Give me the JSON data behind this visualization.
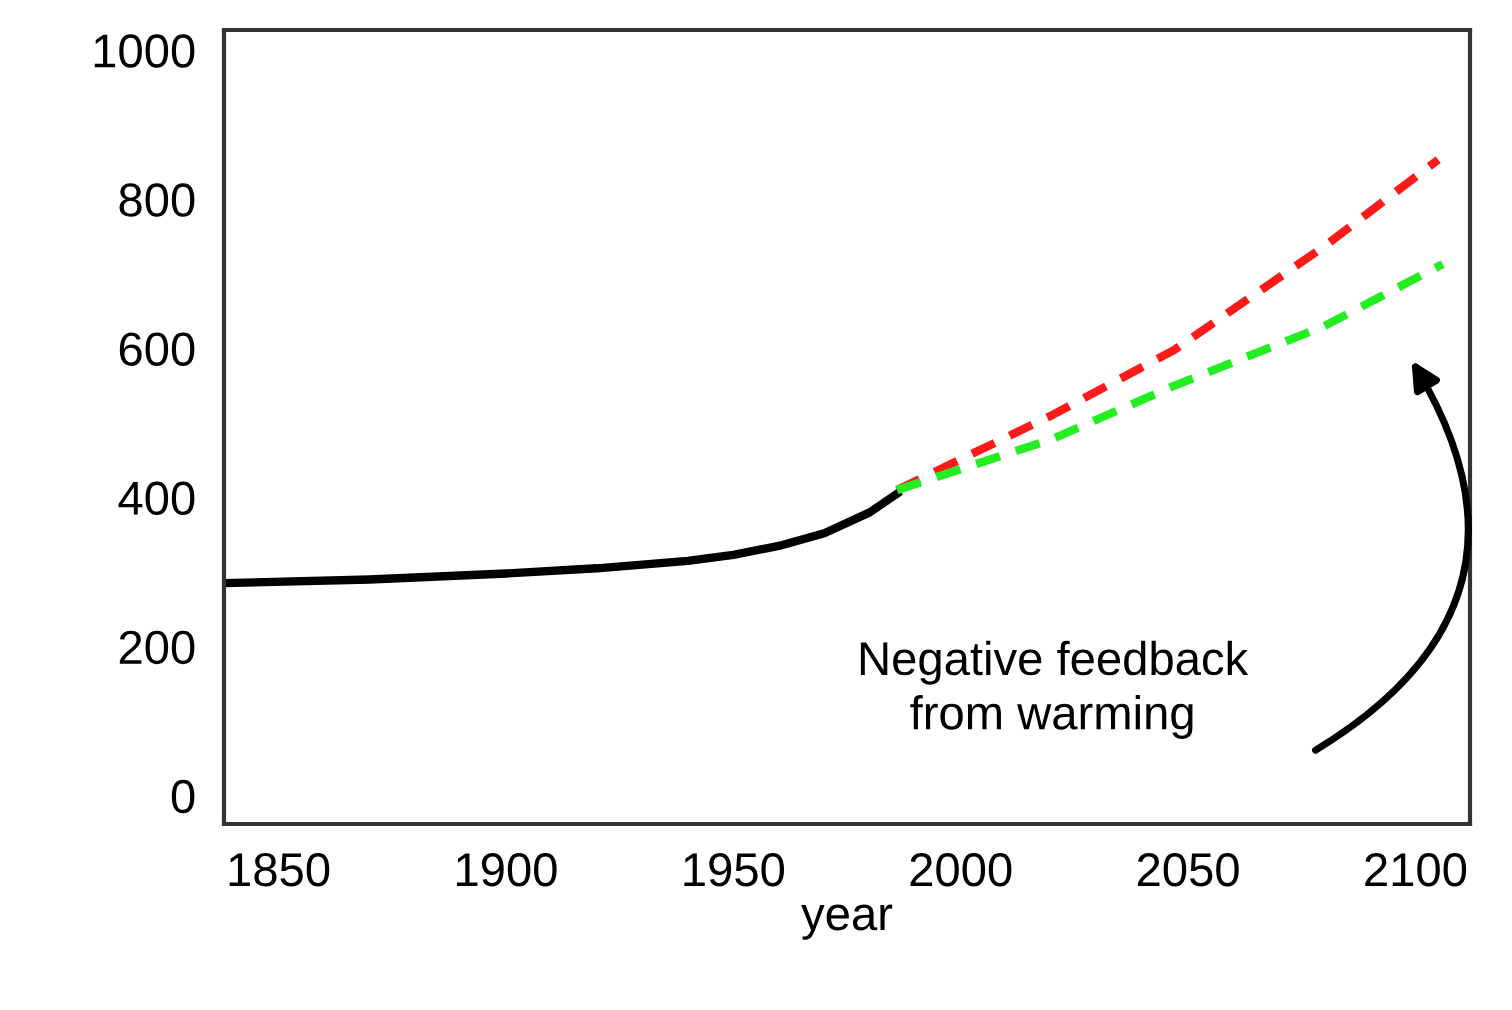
{
  "chart_data": {
    "type": "line",
    "xlabel": "year",
    "xlim": [
      1838,
      2112
    ],
    "xticks": [
      1850,
      1900,
      1950,
      2000,
      2050,
      2100
    ],
    "ylim": [
      -38,
      1027
    ],
    "yticks": [
      0,
      200,
      400,
      600,
      800,
      1000
    ],
    "grid": false,
    "series": [
      {
        "color": "#000000",
        "line_style": "solid",
        "x": [
          1838,
          1870,
          1900,
          1920,
          1940,
          1950,
          1960,
          1970,
          1980,
          1986
        ],
        "values": [
          285,
          290,
          298,
          305,
          315,
          323,
          335,
          352,
          380,
          405
        ]
      },
      {
        "color": "#ff1a1a",
        "line_style": "dashed",
        "x": [
          1986,
          2020,
          2047,
          2080,
          2105
        ],
        "values": [
          410,
          510,
          598,
          737,
          853
        ]
      },
      {
        "color": "#22ee22",
        "line_style": "dashed",
        "x": [
          1986,
          2020,
          2047,
          2080,
          2106
        ],
        "values": [
          410,
          478,
          550,
          630,
          713
        ]
      }
    ],
    "annotations": [
      "Negative feedback\nfrom warming"
    ]
  }
}
